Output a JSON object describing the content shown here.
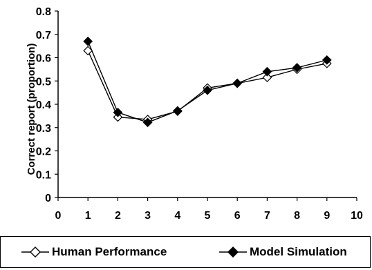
{
  "chart_data": {
    "type": "line",
    "title": "",
    "xlabel": "",
    "ylabel": "Correct report (proportion)",
    "xlim": [
      0,
      10
    ],
    "ylim": [
      0,
      0.8
    ],
    "xticks": [
      "0",
      "1",
      "2",
      "3",
      "4",
      "5",
      "6",
      "7",
      "8",
      "9",
      "10"
    ],
    "yticks": [
      "0",
      "0.1",
      "0.2",
      "0.3",
      "0.4",
      "0.5",
      "0.6",
      "0.7",
      "0.8"
    ],
    "grid": false,
    "legend_position": "bottom",
    "series": [
      {
        "name": "Human Performance",
        "marker": "diamond-open",
        "color": "#000000",
        "x": [
          1,
          2,
          3,
          4,
          5,
          6,
          7,
          8,
          9
        ],
        "values": [
          0.63,
          0.345,
          0.335,
          0.37,
          0.47,
          0.49,
          0.515,
          0.55,
          0.575
        ]
      },
      {
        "name": "Model Simulation",
        "marker": "diamond-filled",
        "color": "#000000",
        "x": [
          1,
          2,
          3,
          4,
          5,
          6,
          7,
          8,
          9
        ],
        "values": [
          0.67,
          0.365,
          0.322,
          0.372,
          0.46,
          0.49,
          0.54,
          0.557,
          0.59
        ]
      }
    ]
  }
}
